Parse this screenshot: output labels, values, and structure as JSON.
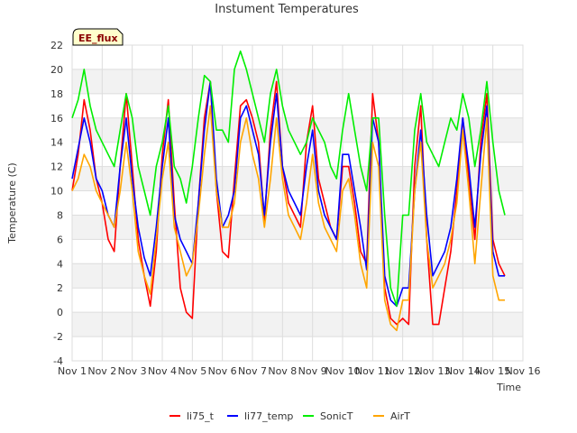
{
  "chart_data": {
    "type": "line",
    "title": "Instument Temperatures",
    "xlabel": "Time",
    "ylabel": "Temperature (C)",
    "badge": "EE_flux",
    "xlim": [
      1,
      16
    ],
    "ylim": [
      -4,
      22
    ],
    "x_ticks": [
      1,
      2,
      3,
      4,
      5,
      6,
      7,
      8,
      9,
      10,
      11,
      12,
      13,
      14,
      15,
      16
    ],
    "x_tick_labels": [
      "Nov 1",
      "Nov 2",
      "Nov 3",
      "Nov 4",
      "Nov 5",
      "Nov 6",
      "Nov 7",
      "Nov 8",
      "Nov 9",
      "Nov 10",
      "Nov 11",
      "Nov 12",
      "Nov 13",
      "Nov 14",
      "Nov 15",
      "Nov 16"
    ],
    "y_ticks": [
      -4,
      -2,
      0,
      2,
      4,
      6,
      8,
      10,
      12,
      14,
      16,
      18,
      20,
      22
    ],
    "y_tick_labels": [
      "-4",
      "-2",
      "0",
      "2",
      "4",
      "6",
      "8",
      "10",
      "12",
      "14",
      "16",
      "18",
      "20",
      "22"
    ],
    "background_bands": true,
    "series": [
      {
        "name": "li75_t",
        "color": "#ff0000",
        "x": [
          1.0,
          1.2,
          1.4,
          1.6,
          1.8,
          2.0,
          2.2,
          2.4,
          2.6,
          2.8,
          3.0,
          3.2,
          3.4,
          3.6,
          3.8,
          4.0,
          4.2,
          4.4,
          4.6,
          4.8,
          5.0,
          5.2,
          5.4,
          5.6,
          5.8,
          6.0,
          6.2,
          6.4,
          6.6,
          6.8,
          7.0,
          7.2,
          7.4,
          7.6,
          7.8,
          8.0,
          8.2,
          8.4,
          8.6,
          8.8,
          9.0,
          9.2,
          9.4,
          9.6,
          9.8,
          10.0,
          10.2,
          10.4,
          10.6,
          10.8,
          11.0,
          11.2,
          11.4,
          11.6,
          11.8,
          12.0,
          12.2,
          12.4,
          12.6,
          12.8,
          13.0,
          13.2,
          13.4,
          13.6,
          13.8,
          14.0,
          14.2,
          14.4,
          14.6,
          14.8,
          15.0,
          15.2,
          15.4
        ],
        "y": [
          10,
          13,
          17.5,
          15,
          11,
          9,
          6,
          5,
          12,
          18,
          12,
          6,
          3,
          0.5,
          5,
          13,
          17.5,
          9,
          2,
          0,
          -0.5,
          9,
          16,
          19,
          10,
          5,
          4.5,
          11,
          17,
          17.5,
          16,
          14,
          7.5,
          15,
          19,
          12,
          9,
          8,
          7,
          14,
          17,
          11,
          9,
          7,
          6,
          12,
          12,
          9,
          5,
          4,
          18,
          14,
          2,
          -0.5,
          -1,
          -0.5,
          -1,
          12,
          17,
          6,
          -1,
          -1,
          2,
          5,
          10,
          16,
          11,
          6,
          14,
          18,
          6,
          4,
          3
        ]
      },
      {
        "name": "li77_temp",
        "color": "#0000ff",
        "x": [
          1.0,
          1.2,
          1.4,
          1.6,
          1.8,
          2.0,
          2.2,
          2.4,
          2.6,
          2.8,
          3.0,
          3.2,
          3.4,
          3.6,
          3.8,
          4.0,
          4.2,
          4.4,
          4.6,
          4.8,
          5.0,
          5.2,
          5.4,
          5.6,
          5.8,
          6.0,
          6.2,
          6.4,
          6.6,
          6.8,
          7.0,
          7.2,
          7.4,
          7.6,
          7.8,
          8.0,
          8.2,
          8.4,
          8.6,
          8.8,
          9.0,
          9.2,
          9.4,
          9.6,
          9.8,
          10.0,
          10.2,
          10.4,
          10.6,
          10.8,
          11.0,
          11.2,
          11.4,
          11.6,
          11.8,
          12.0,
          12.2,
          12.4,
          12.6,
          12.8,
          13.0,
          13.2,
          13.4,
          13.6,
          13.8,
          14.0,
          14.2,
          14.4,
          14.6,
          14.8,
          15.0,
          15.2,
          15.4
        ],
        "y": [
          11,
          13.5,
          16,
          14,
          11,
          10,
          8,
          7,
          12,
          16,
          11,
          7,
          4.5,
          3,
          7,
          12,
          16,
          8,
          6,
          5,
          4,
          9,
          15,
          19,
          11,
          7,
          8,
          10,
          16,
          17,
          15,
          13,
          8,
          14,
          18,
          12,
          10,
          9,
          8,
          12,
          15,
          10,
          8,
          7,
          6,
          13,
          13,
          10,
          7,
          3.5,
          16,
          14,
          3,
          1,
          0.5,
          2,
          2,
          10,
          15,
          8,
          3,
          4,
          5,
          7,
          11,
          16,
          12,
          7,
          13,
          17,
          5,
          3,
          3
        ]
      },
      {
        "name": "SonicT",
        "color": "#00ee00",
        "x": [
          1.0,
          1.2,
          1.4,
          1.6,
          1.8,
          2.0,
          2.2,
          2.4,
          2.6,
          2.8,
          3.0,
          3.2,
          3.4,
          3.6,
          3.8,
          4.0,
          4.2,
          4.4,
          4.6,
          4.8,
          5.0,
          5.2,
          5.4,
          5.6,
          5.8,
          6.0,
          6.2,
          6.4,
          6.6,
          6.8,
          7.0,
          7.2,
          7.4,
          7.6,
          7.8,
          8.0,
          8.2,
          8.4,
          8.6,
          8.8,
          9.0,
          9.2,
          9.4,
          9.6,
          9.8,
          10.0,
          10.2,
          10.4,
          10.6,
          10.8,
          11.0,
          11.2,
          11.4,
          11.6,
          11.8,
          12.0,
          12.2,
          12.4,
          12.6,
          12.8,
          13.0,
          13.2,
          13.4,
          13.6,
          13.8,
          14.0,
          14.2,
          14.4,
          14.6,
          14.8,
          15.0,
          15.2,
          15.4
        ],
        "y": [
          16,
          17.5,
          20,
          17,
          15,
          14,
          13,
          12,
          15,
          18,
          16,
          12,
          10,
          8,
          12,
          14,
          17,
          12,
          11,
          9,
          12,
          16,
          19.5,
          19,
          15,
          15,
          14,
          20,
          21.5,
          20,
          18,
          16,
          14,
          18,
          20,
          17,
          15,
          14,
          13,
          14,
          16,
          15,
          14,
          12,
          11,
          15,
          18,
          15,
          12,
          10,
          16,
          16,
          8,
          2,
          0.5,
          8,
          8,
          15,
          18,
          14,
          13,
          12,
          14,
          16,
          15,
          18,
          16,
          12,
          15,
          19,
          14,
          10,
          8
        ]
      },
      {
        "name": "AirT",
        "color": "#ffa500",
        "x": [
          1.0,
          1.2,
          1.4,
          1.6,
          1.8,
          2.0,
          2.2,
          2.4,
          2.6,
          2.8,
          3.0,
          3.2,
          3.4,
          3.6,
          3.8,
          4.0,
          4.2,
          4.4,
          4.6,
          4.8,
          5.0,
          5.2,
          5.4,
          5.6,
          5.8,
          6.0,
          6.2,
          6.4,
          6.6,
          6.8,
          7.0,
          7.2,
          7.4,
          7.6,
          7.8,
          8.0,
          8.2,
          8.4,
          8.6,
          8.8,
          9.0,
          9.2,
          9.4,
          9.6,
          9.8,
          10.0,
          10.2,
          10.4,
          10.6,
          10.8,
          11.0,
          11.2,
          11.4,
          11.6,
          11.8,
          12.0,
          12.2,
          12.4,
          12.6,
          12.8,
          13.0,
          13.2,
          13.4,
          13.6,
          13.8,
          14.0,
          14.2,
          14.4,
          14.6,
          14.8,
          15.0,
          15.2,
          15.4
        ],
        "y": [
          10,
          11,
          13,
          12,
          10,
          9,
          8,
          7,
          10,
          14,
          10,
          5,
          3,
          1.5,
          6,
          11,
          14,
          7,
          5,
          3,
          4,
          8,
          13,
          17,
          10,
          7,
          7,
          9,
          14,
          16,
          13,
          11,
          7,
          11,
          16,
          11,
          8,
          7,
          6,
          9,
          13,
          9,
          7,
          6,
          5,
          10,
          11,
          8,
          4,
          2,
          14,
          12,
          1,
          -1,
          -1.5,
          1,
          1,
          10,
          14,
          6,
          2,
          3,
          4,
          6,
          9,
          15,
          10,
          4,
          10,
          16,
          3,
          1,
          1
        ]
      }
    ]
  }
}
